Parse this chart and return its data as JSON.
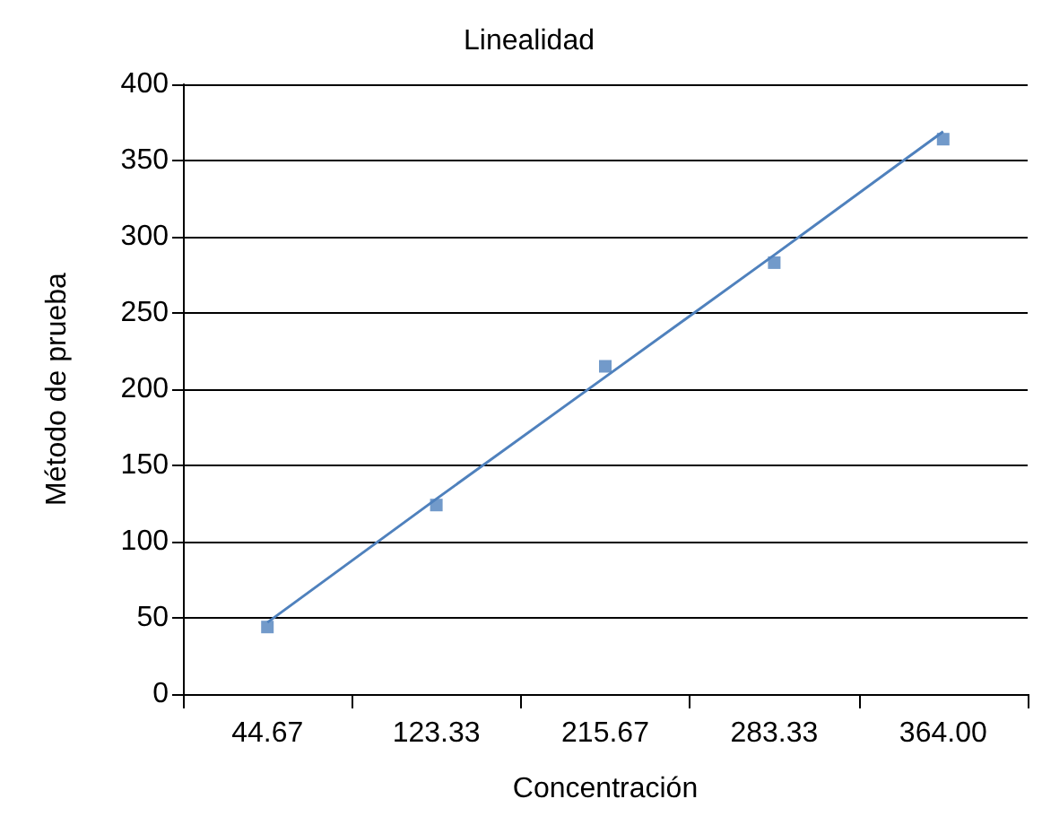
{
  "chart_data": {
    "type": "scatter",
    "title": "Linealidad",
    "xlabel": "Concentración",
    "ylabel": "Método de prueba",
    "categories": [
      "44.67",
      "123.33",
      "215.67",
      "283.33",
      "364.00"
    ],
    "series": [
      {
        "color": "#4f81bd",
        "values": [
          44,
          124,
          215,
          283,
          364
        ],
        "marker": "square"
      },
      {
        "type": "line",
        "color": "#4f81bd",
        "values": [
          47,
          128,
          208,
          288,
          369
        ],
        "marker": "none",
        "line_style": "solid"
      }
    ],
    "ylim": [
      0,
      400
    ],
    "yticks": [
      0,
      50,
      100,
      150,
      200,
      250,
      300,
      350,
      400
    ],
    "grid": "y"
  }
}
